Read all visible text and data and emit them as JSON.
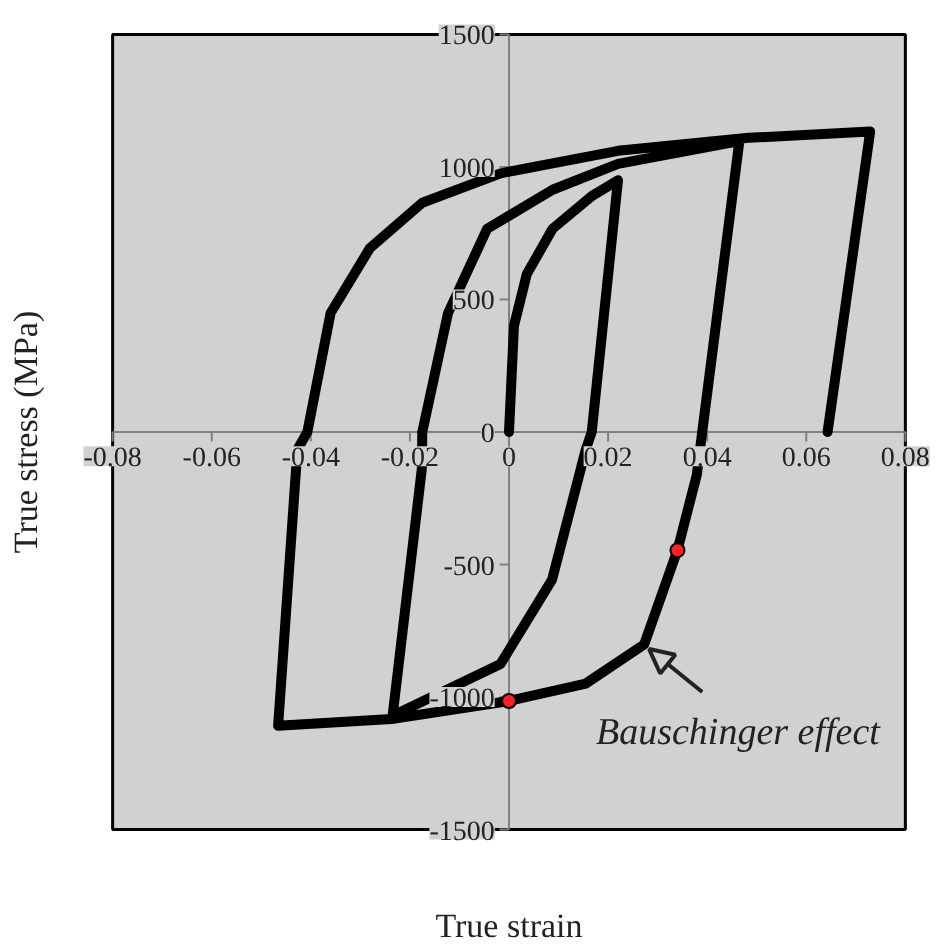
{
  "chart_data": {
    "type": "line",
    "xlabel": "True strain",
    "ylabel": "True stress (MPa)",
    "xlim": [
      -0.08,
      0.08
    ],
    "ylim": [
      -1500,
      1500
    ],
    "xticks": [
      -0.08,
      -0.06,
      -0.04,
      -0.02,
      0,
      0.02,
      0.04,
      0.06,
      0.08
    ],
    "yticks": [
      -1500,
      -1000,
      -500,
      0,
      500,
      1000,
      1500
    ],
    "grid": false,
    "marker": "none",
    "line_style": "solid",
    "series": [
      {
        "color": "#000000",
        "x": [
          0,
          0.001,
          0.0036,
          0.0088,
          0.0167,
          0.022,
          0.0167,
          0.0155,
          0.0087,
          -0.0017,
          -0.0235,
          -0.0176,
          -0.0175,
          -0.0123,
          -0.0044,
          0.0088,
          0.022,
          0.0465,
          0.039,
          0.0379,
          0.034,
          0.0273,
          0.0155,
          0,
          -0.0237,
          -0.0466,
          -0.0427,
          -0.0407,
          -0.036,
          -0.0281,
          -0.0175,
          -0.0017,
          0.022,
          0.0484,
          0.0729,
          0.0643
        ],
        "values": [
          0,
          400,
          596,
          767,
          890,
          950,
          0,
          -66,
          -557,
          -875,
          -1071,
          -140,
          0,
          449,
          767,
          914,
          1012,
          1098,
          0,
          -162,
          -446,
          -801,
          -949,
          -1015,
          -1083,
          -1108,
          -66,
          0,
          449,
          693,
          865,
          976,
          1061,
          1110,
          1134,
          0
        ]
      },
      {
        "type": "scatter",
        "color": "#ff2020",
        "marker": "circle",
        "x": [
          0.034,
          0
        ],
        "values": [
          -446,
          -1015
        ]
      }
    ],
    "annotations": [
      {
        "text": "Bauschinger effect",
        "x": 0.027,
        "y": -801
      }
    ]
  }
}
